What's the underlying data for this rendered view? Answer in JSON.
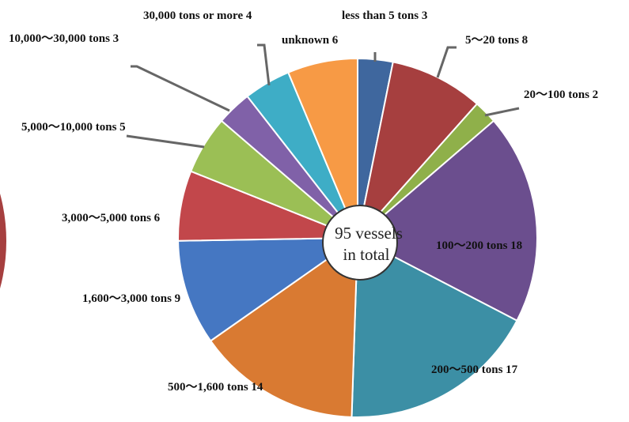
{
  "chart_data": {
    "type": "pie",
    "center_label_lines": [
      "95 vessels",
      "in total"
    ],
    "slices": [
      {
        "label": "less than 5 tons",
        "value": 3,
        "color": "#3F679E"
      },
      {
        "label": "5～20 tons",
        "value": 8,
        "color": "#A63F3F"
      },
      {
        "label": "20～100 tons",
        "value": 2,
        "color": "#8FB04A"
      },
      {
        "label": "100～200 tons",
        "value": 18,
        "color": "#6B4E8E"
      },
      {
        "label": "200～500 tons",
        "value": 17,
        "color": "#3C8FA5"
      },
      {
        "label": "500～1,600 tons",
        "value": 14,
        "color": "#D97A32"
      },
      {
        "label": "1,600～3,000 tons",
        "value": 9,
        "color": "#4577C2"
      },
      {
        "label": "3,000～5,000 tons",
        "value": 6,
        "color": "#C2474B"
      },
      {
        "label": "5,000～10,000 tons",
        "value": 5,
        "color": "#9BBF55"
      },
      {
        "label": "10,000～30,000 tons",
        "value": 3,
        "color": "#8061A8"
      },
      {
        "label": "30,000 tons or more",
        "value": 4,
        "color": "#3EADC6"
      },
      {
        "label": "unknown",
        "value": 6,
        "color": "#F79A45"
      }
    ],
    "label_texts": [
      "less than 5 tons 3",
      "5～20 tons 8",
      "20～100 tons 2",
      "100～200 tons 18",
      "200～500 tons 17",
      "500～1,600 tons 14",
      "1,600～3,000 tons 9",
      "3,000～5,000 tons 6",
      "5,000～10,000 tons 5",
      "10,000～30,000 tons 3",
      "30,000 tons or more 4",
      "unknown 6"
    ]
  }
}
